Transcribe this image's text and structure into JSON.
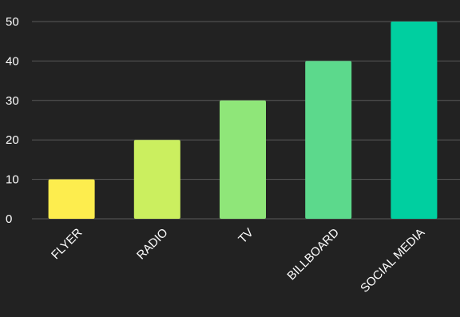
{
  "chart_data": {
    "type": "bar",
    "categories": [
      "FLYER",
      "RADIO",
      "TV",
      "BILLBOARD",
      "SOCIAL MEDIA"
    ],
    "values": [
      10,
      20,
      30,
      40,
      50
    ],
    "bar_colors": [
      "#fded4e",
      "#cbef5f",
      "#8fe679",
      "#5cd98c",
      "#00cfa0"
    ],
    "ylim": [
      0,
      50
    ],
    "yticks": [
      0,
      10,
      20,
      30,
      40,
      50
    ],
    "grid": true,
    "background": "#222222",
    "text_color": "#ffffff",
    "grid_color": "#5a5a5a"
  }
}
